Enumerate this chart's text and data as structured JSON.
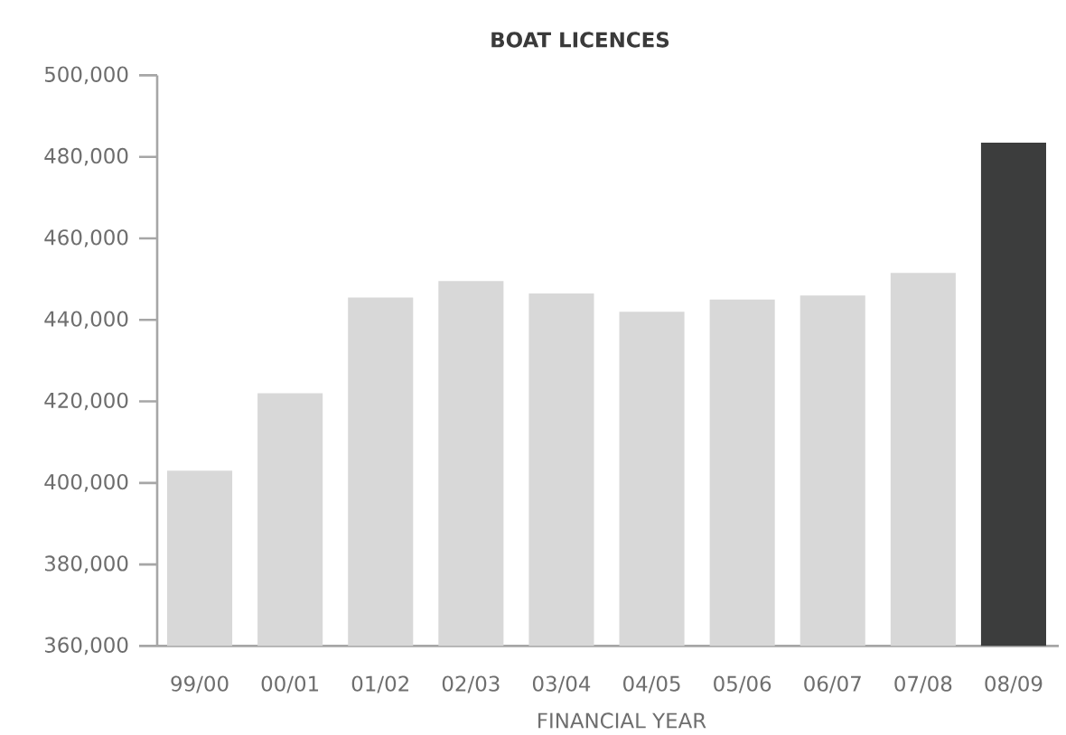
{
  "chart_data": {
    "type": "bar",
    "title": "BOAT LICENCES",
    "xlabel": "FINANCIAL YEAR",
    "categories": [
      "99/00",
      "00/01",
      "01/02",
      "02/03",
      "03/04",
      "04/05",
      "05/06",
      "06/07",
      "07/08",
      "08/09"
    ],
    "values": [
      403000,
      422000,
      445500,
      449500,
      446500,
      442000,
      445000,
      446000,
      451500,
      483500
    ],
    "colors": [
      "#d8d8d8",
      "#d8d8d8",
      "#d8d8d8",
      "#d8d8d8",
      "#d8d8d8",
      "#d8d8d8",
      "#d8d8d8",
      "#d8d8d8",
      "#d8d8d8",
      "#3c3d3d"
    ],
    "ylim": [
      360000,
      500000
    ],
    "yticks": [
      {
        "value": 360000,
        "label": "360,000"
      },
      {
        "value": 380000,
        "label": "380,000"
      },
      {
        "value": 400000,
        "label": "400,000"
      },
      {
        "value": 420000,
        "label": "420,000"
      },
      {
        "value": 440000,
        "label": "440,000"
      },
      {
        "value": 460000,
        "label": "460,000"
      },
      {
        "value": 480000,
        "label": "480,000"
      },
      {
        "value": 500000,
        "label": "500,000"
      }
    ]
  }
}
